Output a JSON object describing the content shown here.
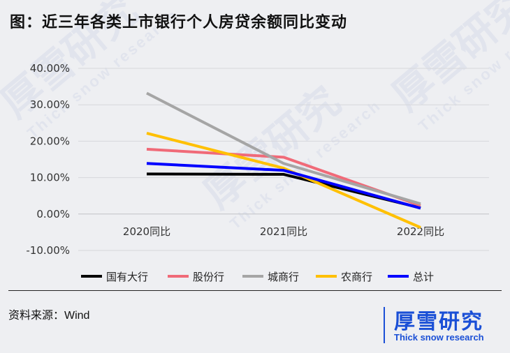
{
  "title": "图：近三年各类上市银行个人房贷余额同比变动",
  "source": "资料来源：Wind",
  "brand": {
    "name": "厚雪研究",
    "sub": "Thick snow research"
  },
  "watermark": {
    "big": "厚雪研究",
    "small": "Thick snow research"
  },
  "chart_data": {
    "type": "line",
    "categories": [
      "2020同比",
      "2021同比",
      "2022同比"
    ],
    "ylim": [
      -10,
      40
    ],
    "yticks": [
      40,
      30,
      20,
      10,
      0,
      -10
    ],
    "ytick_labels": [
      "40.00%",
      "30.00%",
      "20.00%",
      "10.00%",
      "0.00%",
      "-10.00%"
    ],
    "grid": true,
    "legend_position": "bottom",
    "series": [
      {
        "name": "国有大行",
        "color": "#000000",
        "values": [
          11.0,
          10.9,
          1.7
        ]
      },
      {
        "name": "股份行",
        "color": "#f06a78",
        "values": [
          17.8,
          15.6,
          2.3
        ]
      },
      {
        "name": "城商行",
        "color": "#a5a5a5",
        "values": [
          33.2,
          13.9,
          2.8
        ]
      },
      {
        "name": "农商行",
        "color": "#ffc000",
        "values": [
          22.2,
          12.6,
          -3.7
        ]
      },
      {
        "name": "总计",
        "color": "#0000ff",
        "values": [
          13.9,
          12.0,
          1.6
        ]
      }
    ]
  }
}
